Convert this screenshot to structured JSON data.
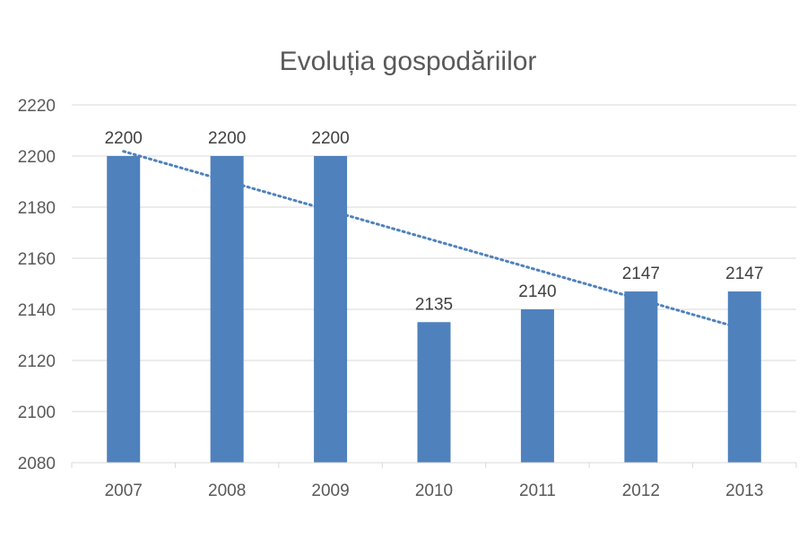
{
  "chart_data": {
    "type": "bar",
    "title": "Evoluția gospodăriilor",
    "categories": [
      "2007",
      "2008",
      "2009",
      "2010",
      "2011",
      "2012",
      "2013"
    ],
    "values": [
      2200,
      2200,
      2200,
      2135,
      2140,
      2147,
      2147
    ],
    "data_labels": [
      "2200",
      "2200",
      "2200",
      "2135",
      "2140",
      "2147",
      "2147"
    ],
    "ylim": [
      2080,
      2220
    ],
    "y_ticks": [
      2080,
      2100,
      2120,
      2140,
      2160,
      2180,
      2200,
      2220
    ],
    "grid": true,
    "legend": "none",
    "trendline": {
      "type": "linear",
      "style": "dotted"
    },
    "colors": {
      "bar": "#4f81bd",
      "trendline": "#4f81bd"
    }
  }
}
